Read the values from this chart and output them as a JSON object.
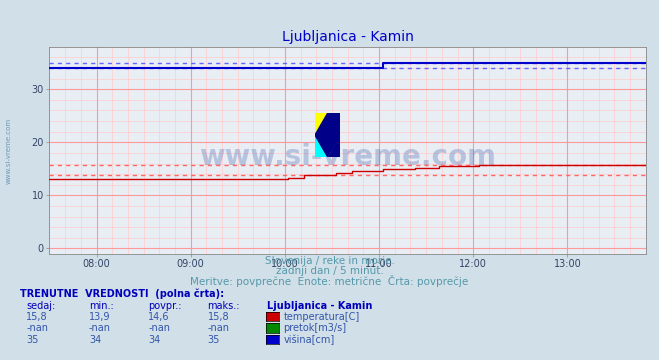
{
  "title": "Ljubljanica - Kamin",
  "background_color": "#d0dfe8",
  "plot_bg_color": "#e8eef4",
  "title_color": "#0000cc",
  "title_fontsize": 10,
  "xlim_hours": [
    7.5,
    13.833
  ],
  "ylim": [
    -1,
    38
  ],
  "yticks": [
    0,
    10,
    20,
    30
  ],
  "xtick_labels": [
    "08:00",
    "09:00",
    "10:00",
    "11:00",
    "12:00",
    "13:00"
  ],
  "xtick_positions": [
    8.0,
    9.0,
    10.0,
    11.0,
    12.0,
    13.0
  ],
  "grid_color": "#ff9999",
  "grid_color_minor": "#ffcccc",
  "temp_color": "#cc0000",
  "flow_color": "#008800",
  "height_color": "#0000cc",
  "temp_dashed_color": "#ff6666",
  "height_dashed_color": "#6666ff",
  "subtitle1": "Slovenija / reke in morje.",
  "subtitle2": "zadnji dan / 5 minut.",
  "subtitle3": "Meritve: povprečne  Enote: metrične  Črta: povprečje",
  "subtitle_color": "#5599aa",
  "subtitle_fontsize": 7.5,
  "watermark": "www.si-vreme.com",
  "watermark_color": "#3355aa",
  "watermark_alpha": 0.28,
  "left_label": "www.si-vreme.com",
  "left_label_color": "#5588aa",
  "table_header_color": "#0000bb",
  "table_text_color": "#3355aa",
  "table_label_color": "#0000bb",
  "legend_title": "Ljubljanica - Kamin",
  "temp_min_line": 13.9,
  "temp_max_line": 15.8,
  "height_min_line": 34,
  "height_max_line": 35
}
